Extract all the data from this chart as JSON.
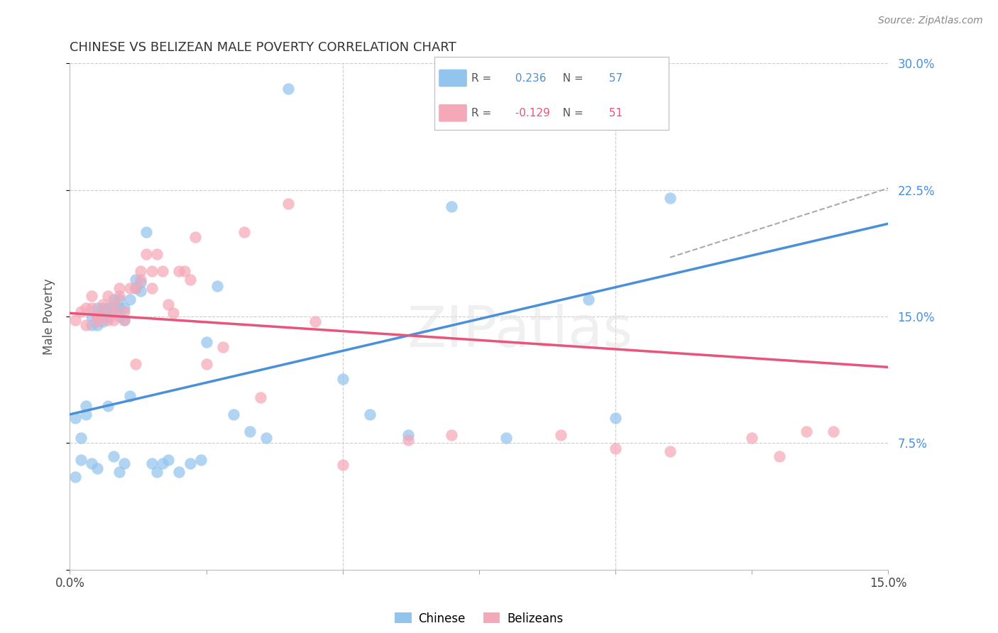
{
  "title": "CHINESE VS BELIZEAN MALE POVERTY CORRELATION CHART",
  "source": "Source: ZipAtlas.com",
  "ylabel_label": "Male Poverty",
  "xlim": [
    0.0,
    0.15
  ],
  "ylim": [
    0.0,
    0.3
  ],
  "chinese_R": 0.236,
  "chinese_N": 57,
  "belizean_R": -0.129,
  "belizean_N": 51,
  "chinese_color": "#92C4ED",
  "belizean_color": "#F4A8B8",
  "chinese_line_color": "#4A90D9",
  "belizean_line_color": "#E8547A",
  "dashed_color": "#AAAAAA",
  "watermark": "ZIPatlas",
  "grid_color": "#CCCCCC",
  "chinese_line_x0": 0.0,
  "chinese_line_y0": 0.092,
  "chinese_line_x1": 0.15,
  "chinese_line_y1": 0.205,
  "belizean_line_x0": 0.0,
  "belizean_line_y0": 0.152,
  "belizean_line_x1": 0.15,
  "belizean_line_y1": 0.12,
  "dashed_line_x0": 0.11,
  "dashed_line_y0": 0.185,
  "dashed_line_x1": 0.15,
  "dashed_line_y1": 0.226,
  "chinese_x": [
    0.001,
    0.001,
    0.002,
    0.002,
    0.003,
    0.003,
    0.004,
    0.004,
    0.004,
    0.005,
    0.005,
    0.005,
    0.005,
    0.006,
    0.006,
    0.006,
    0.007,
    0.007,
    0.007,
    0.008,
    0.008,
    0.008,
    0.009,
    0.009,
    0.009,
    0.009,
    0.01,
    0.01,
    0.01,
    0.011,
    0.011,
    0.012,
    0.012,
    0.013,
    0.013,
    0.014,
    0.015,
    0.016,
    0.017,
    0.018,
    0.02,
    0.022,
    0.024,
    0.025,
    0.027,
    0.03,
    0.033,
    0.036,
    0.04,
    0.05,
    0.055,
    0.062,
    0.07,
    0.08,
    0.095,
    0.1,
    0.11
  ],
  "chinese_y": [
    0.09,
    0.055,
    0.078,
    0.065,
    0.097,
    0.092,
    0.15,
    0.145,
    0.063,
    0.155,
    0.15,
    0.145,
    0.06,
    0.155,
    0.15,
    0.147,
    0.155,
    0.15,
    0.097,
    0.16,
    0.155,
    0.067,
    0.16,
    0.155,
    0.15,
    0.058,
    0.155,
    0.148,
    0.063,
    0.16,
    0.103,
    0.172,
    0.167,
    0.17,
    0.165,
    0.2,
    0.063,
    0.058,
    0.063,
    0.065,
    0.058,
    0.063,
    0.065,
    0.135,
    0.168,
    0.092,
    0.082,
    0.078,
    0.285,
    0.113,
    0.092,
    0.08,
    0.215,
    0.078,
    0.16,
    0.09,
    0.22
  ],
  "belizean_x": [
    0.001,
    0.002,
    0.003,
    0.003,
    0.004,
    0.004,
    0.005,
    0.005,
    0.006,
    0.006,
    0.007,
    0.007,
    0.008,
    0.008,
    0.008,
    0.009,
    0.009,
    0.01,
    0.01,
    0.011,
    0.012,
    0.012,
    0.013,
    0.013,
    0.014,
    0.015,
    0.015,
    0.016,
    0.017,
    0.018,
    0.019,
    0.02,
    0.021,
    0.022,
    0.023,
    0.025,
    0.028,
    0.032,
    0.035,
    0.04,
    0.045,
    0.09,
    0.1,
    0.11,
    0.125,
    0.13,
    0.135,
    0.14,
    0.05,
    0.062,
    0.07
  ],
  "belizean_y": [
    0.148,
    0.153,
    0.145,
    0.155,
    0.155,
    0.162,
    0.15,
    0.147,
    0.157,
    0.152,
    0.162,
    0.148,
    0.157,
    0.152,
    0.148,
    0.167,
    0.162,
    0.153,
    0.148,
    0.167,
    0.122,
    0.167,
    0.177,
    0.172,
    0.187,
    0.167,
    0.177,
    0.187,
    0.177,
    0.157,
    0.152,
    0.177,
    0.177,
    0.172,
    0.197,
    0.122,
    0.132,
    0.2,
    0.102,
    0.217,
    0.147,
    0.08,
    0.072,
    0.07,
    0.078,
    0.067,
    0.082,
    0.082,
    0.062,
    0.077,
    0.08
  ]
}
